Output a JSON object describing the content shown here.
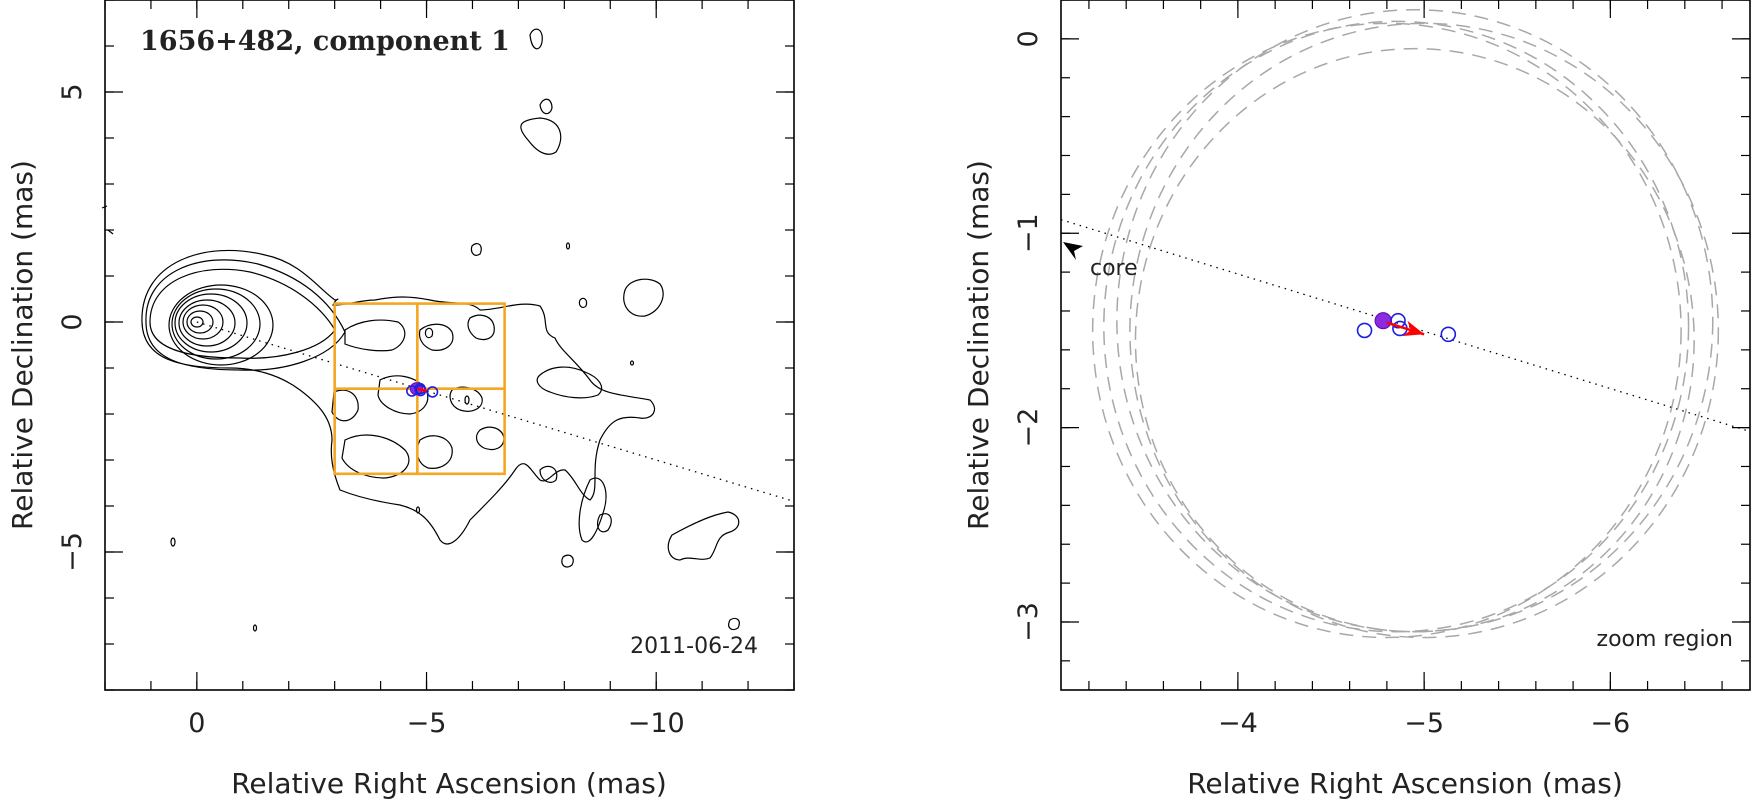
{
  "chart_data": [
    {
      "type": "contour",
      "title": "1656+482, component 1",
      "date": "2011-06-24",
      "xlabel": "Relative Right Ascension (mas)",
      "ylabel": "Relative Declination (mas)",
      "xlim": [
        2,
        -13
      ],
      "ylim": [
        -8,
        7
      ],
      "x_reversed": true,
      "xticks": [
        0,
        -5,
        -10
      ],
      "xtick_labels": [
        "0",
        "−5",
        "−10"
      ],
      "yticks": [
        -5,
        0,
        5
      ],
      "ytick_labels": [
        "−5",
        "0",
        "5"
      ],
      "core_position": [
        0,
        0
      ],
      "jet_axis": {
        "from": [
          0,
          0
        ],
        "to": [
          -13,
          -3.9
        ]
      },
      "zoom_box": {
        "ra": [
          -3,
          -6.7
        ],
        "dec": [
          -3.3,
          0.4
        ],
        "cross": [
          -4.8,
          -1.45
        ]
      },
      "component_positions": [
        {
          "ra": -4.78,
          "dec": -1.45,
          "kind": "filled"
        },
        {
          "ra": -4.68,
          "dec": -1.5,
          "kind": "open"
        },
        {
          "ra": -4.86,
          "dec": -1.45,
          "kind": "open"
        },
        {
          "ra": -4.87,
          "dec": -1.49,
          "kind": "open"
        },
        {
          "ra": -5.13,
          "dec": -1.52,
          "kind": "open"
        }
      ],
      "motion_vector": {
        "from": [
          -4.8,
          -1.45
        ],
        "to": [
          -5.0,
          -1.5
        ]
      }
    },
    {
      "type": "scatter",
      "xlabel": "Relative Right Ascension (mas)",
      "ylabel": "Relative Declination (mas)",
      "xlim": [
        -3.05,
        -6.75
      ],
      "ylim": [
        -3.35,
        0.2
      ],
      "x_reversed": true,
      "xticks": [
        -4,
        -5,
        -6
      ],
      "xtick_labels": [
        "−4",
        "−5",
        "−6"
      ],
      "yticks": [
        0,
        -1,
        -2,
        -3
      ],
      "ytick_labels": [
        "0",
        "−1",
        "−2",
        "−3"
      ],
      "core_label": "core",
      "zoom_label": "zoom region",
      "jet_axis": {
        "from": [
          -3.05,
          -0.93
        ],
        "to": [
          -6.75,
          -2.02
        ]
      },
      "component_positions": [
        {
          "ra": -4.78,
          "dec": -1.45,
          "kind": "filled"
        },
        {
          "ra": -4.68,
          "dec": -1.5,
          "kind": "open"
        },
        {
          "ra": -4.86,
          "dec": -1.45,
          "kind": "open"
        },
        {
          "ra": -4.87,
          "dec": -1.49,
          "kind": "open"
        },
        {
          "ra": -5.13,
          "dec": -1.52,
          "kind": "open"
        }
      ],
      "motion_vector": {
        "from": [
          -4.8,
          -1.46
        ],
        "to": [
          -5.0,
          -1.52
        ]
      },
      "uncertainty_circles": [
        {
          "ra": -4.8,
          "dec": -1.5,
          "r": 1.58
        },
        {
          "ra": -4.85,
          "dec": -1.48,
          "r": 1.57
        },
        {
          "ra": -4.95,
          "dec": -1.45,
          "r": 1.6
        },
        {
          "ra": -4.95,
          "dec": -1.55,
          "r": 1.5
        },
        {
          "ra": -5.0,
          "dec": -1.5,
          "r": 1.58
        }
      ]
    }
  ]
}
